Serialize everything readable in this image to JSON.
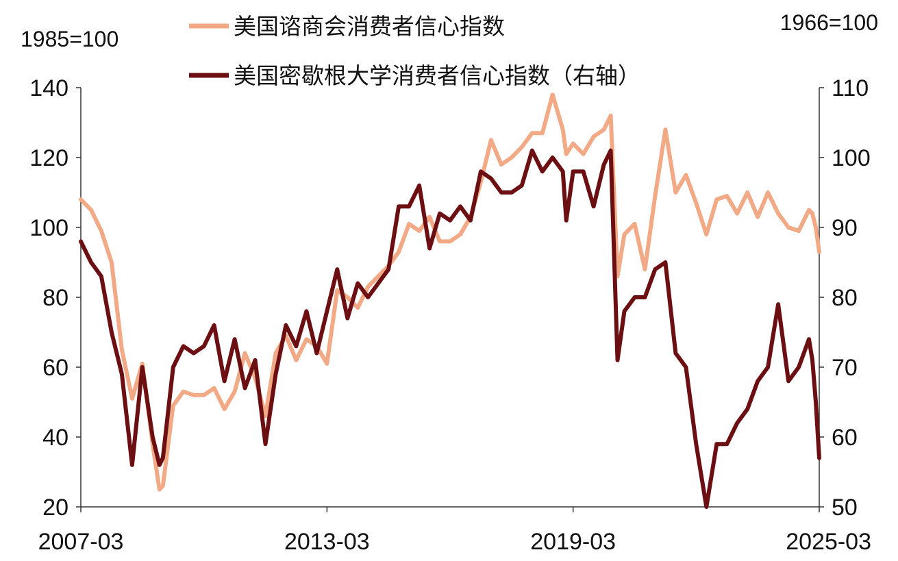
{
  "chart_data": {
    "type": "line",
    "left_unit": "1985=100",
    "right_unit": "1966=100",
    "x_ticks": [
      "2007-03",
      "2013-03",
      "2019-03",
      "2025-03"
    ],
    "x_range": [
      "2007-03",
      "2025-03"
    ],
    "y_left": {
      "ylim": [
        20,
        140
      ],
      "ticks": [
        20,
        40,
        60,
        80,
        100,
        120,
        140
      ]
    },
    "y_right": {
      "ylim": [
        50,
        110
      ],
      "ticks": [
        50,
        60,
        70,
        80,
        90,
        100,
        110
      ]
    },
    "grid": false,
    "legend_position": "top",
    "colors": {
      "conference_board": "#F2AA86",
      "michigan": "#6B0F12",
      "axis": "#333333"
    },
    "series": [
      {
        "name": "美国谘商会消费者信心指数",
        "axis": "left",
        "points": [
          [
            "2007-03",
            108
          ],
          [
            "2007-06",
            105
          ],
          [
            "2007-09",
            99
          ],
          [
            "2007-12",
            90
          ],
          [
            "2008-03",
            65
          ],
          [
            "2008-06",
            51
          ],
          [
            "2008-09",
            61
          ],
          [
            "2008-12",
            38
          ],
          [
            "2009-02",
            25
          ],
          [
            "2009-03",
            26
          ],
          [
            "2009-06",
            49
          ],
          [
            "2009-09",
            53
          ],
          [
            "2009-12",
            52
          ],
          [
            "2010-03",
            52
          ],
          [
            "2010-06",
            54
          ],
          [
            "2010-09",
            48
          ],
          [
            "2010-12",
            53
          ],
          [
            "2011-03",
            64
          ],
          [
            "2011-06",
            57
          ],
          [
            "2011-09",
            46
          ],
          [
            "2011-12",
            64
          ],
          [
            "2012-03",
            69
          ],
          [
            "2012-06",
            62
          ],
          [
            "2012-09",
            68
          ],
          [
            "2012-12",
            66
          ],
          [
            "2013-03",
            61
          ],
          [
            "2013-06",
            82
          ],
          [
            "2013-09",
            80
          ],
          [
            "2013-12",
            77
          ],
          [
            "2014-03",
            83
          ],
          [
            "2014-06",
            86
          ],
          [
            "2014-09",
            89
          ],
          [
            "2014-12",
            93
          ],
          [
            "2015-03",
            101
          ],
          [
            "2015-06",
            99
          ],
          [
            "2015-09",
            103
          ],
          [
            "2015-12",
            96
          ],
          [
            "2016-03",
            96
          ],
          [
            "2016-06",
            98
          ],
          [
            "2016-09",
            103
          ],
          [
            "2016-12",
            113
          ],
          [
            "2017-03",
            125
          ],
          [
            "2017-06",
            118
          ],
          [
            "2017-09",
            120
          ],
          [
            "2017-12",
            123
          ],
          [
            "2018-03",
            127
          ],
          [
            "2018-06",
            127
          ],
          [
            "2018-09",
            138
          ],
          [
            "2018-12",
            128
          ],
          [
            "2019-01",
            121
          ],
          [
            "2019-03",
            124
          ],
          [
            "2019-06",
            121
          ],
          [
            "2019-09",
            126
          ],
          [
            "2019-12",
            128
          ],
          [
            "2020-02",
            132
          ],
          [
            "2020-04",
            86
          ],
          [
            "2020-06",
            98
          ],
          [
            "2020-09",
            101
          ],
          [
            "2020-12",
            88
          ],
          [
            "2021-03",
            109
          ],
          [
            "2021-06",
            128
          ],
          [
            "2021-09",
            110
          ],
          [
            "2021-12",
            115
          ],
          [
            "2022-03",
            107
          ],
          [
            "2022-06",
            98
          ],
          [
            "2022-09",
            108
          ],
          [
            "2022-12",
            109
          ],
          [
            "2023-03",
            104
          ],
          [
            "2023-06",
            110
          ],
          [
            "2023-09",
            103
          ],
          [
            "2023-12",
            110
          ],
          [
            "2024-03",
            104
          ],
          [
            "2024-06",
            100
          ],
          [
            "2024-09",
            99
          ],
          [
            "2024-12",
            105
          ],
          [
            "2025-01",
            104
          ],
          [
            "2025-02",
            100
          ],
          [
            "2025-03",
            93
          ]
        ]
      },
      {
        "name": "美国密歇根大学消费者信心指数（右轴）",
        "axis": "right",
        "points": [
          [
            "2007-03",
            88
          ],
          [
            "2007-06",
            85
          ],
          [
            "2007-09",
            83
          ],
          [
            "2007-12",
            75
          ],
          [
            "2008-03",
            69
          ],
          [
            "2008-06",
            56
          ],
          [
            "2008-09",
            70
          ],
          [
            "2008-12",
            60
          ],
          [
            "2009-02",
            56
          ],
          [
            "2009-03",
            57
          ],
          [
            "2009-06",
            70
          ],
          [
            "2009-09",
            73
          ],
          [
            "2009-12",
            72
          ],
          [
            "2010-03",
            73
          ],
          [
            "2010-06",
            76
          ],
          [
            "2010-09",
            68
          ],
          [
            "2010-12",
            74
          ],
          [
            "2011-03",
            67
          ],
          [
            "2011-06",
            71
          ],
          [
            "2011-09",
            59
          ],
          [
            "2011-12",
            69
          ],
          [
            "2012-03",
            76
          ],
          [
            "2012-06",
            73
          ],
          [
            "2012-09",
            78
          ],
          [
            "2012-12",
            72
          ],
          [
            "2013-03",
            78
          ],
          [
            "2013-06",
            84
          ],
          [
            "2013-09",
            77
          ],
          [
            "2013-12",
            82
          ],
          [
            "2014-03",
            80
          ],
          [
            "2014-06",
            82
          ],
          [
            "2014-09",
            84
          ],
          [
            "2014-12",
            93
          ],
          [
            "2015-03",
            93
          ],
          [
            "2015-06",
            96
          ],
          [
            "2015-09",
            87
          ],
          [
            "2015-12",
            92
          ],
          [
            "2016-03",
            91
          ],
          [
            "2016-06",
            93
          ],
          [
            "2016-09",
            91
          ],
          [
            "2016-12",
            98
          ],
          [
            "2017-03",
            97
          ],
          [
            "2017-06",
            95
          ],
          [
            "2017-09",
            95
          ],
          [
            "2017-12",
            96
          ],
          [
            "2018-03",
            101
          ],
          [
            "2018-06",
            98
          ],
          [
            "2018-09",
            100
          ],
          [
            "2018-12",
            98
          ],
          [
            "2019-01",
            91
          ],
          [
            "2019-03",
            98
          ],
          [
            "2019-06",
            98
          ],
          [
            "2019-09",
            93
          ],
          [
            "2019-12",
            99
          ],
          [
            "2020-02",
            101
          ],
          [
            "2020-04",
            71
          ],
          [
            "2020-06",
            78
          ],
          [
            "2020-09",
            80
          ],
          [
            "2020-12",
            80
          ],
          [
            "2021-03",
            84
          ],
          [
            "2021-06",
            85
          ],
          [
            "2021-09",
            72
          ],
          [
            "2021-12",
            70
          ],
          [
            "2022-03",
            59
          ],
          [
            "2022-06",
            50
          ],
          [
            "2022-09",
            59
          ],
          [
            "2022-12",
            59
          ],
          [
            "2023-03",
            62
          ],
          [
            "2023-06",
            64
          ],
          [
            "2023-09",
            68
          ],
          [
            "2023-12",
            70
          ],
          [
            "2024-03",
            79
          ],
          [
            "2024-06",
            68
          ],
          [
            "2024-09",
            70
          ],
          [
            "2024-12",
            74
          ],
          [
            "2025-01",
            71
          ],
          [
            "2025-02",
            65
          ],
          [
            "2025-03",
            57
          ]
        ]
      }
    ]
  }
}
